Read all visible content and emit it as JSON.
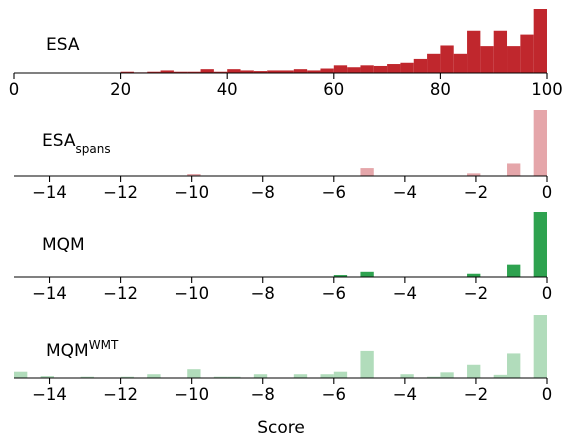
{
  "figure": {
    "xlabel": "Score"
  },
  "chart_data": [
    {
      "type": "bar",
      "label_main": "ESA",
      "label_sub": "",
      "label_sup": "",
      "color": "#c0272d",
      "xlim": [
        0,
        100
      ],
      "ylim": [
        0,
        1
      ],
      "xticks": [
        0,
        20,
        40,
        60,
        80,
        100
      ],
      "xtick_labels": [
        "0",
        "20",
        "40",
        "60",
        "80",
        "100"
      ],
      "bin_width": 2.5,
      "bars": [
        {
          "x": 20.0,
          "value": 0.02
        },
        {
          "x": 22.5,
          "value": 0.01
        },
        {
          "x": 25.0,
          "value": 0.02
        },
        {
          "x": 27.5,
          "value": 0.04
        },
        {
          "x": 30.0,
          "value": 0.02
        },
        {
          "x": 32.5,
          "value": 0.02
        },
        {
          "x": 35.0,
          "value": 0.06
        },
        {
          "x": 37.5,
          "value": 0.02
        },
        {
          "x": 40.0,
          "value": 0.06
        },
        {
          "x": 42.5,
          "value": 0.04
        },
        {
          "x": 45.0,
          "value": 0.03
        },
        {
          "x": 47.5,
          "value": 0.04
        },
        {
          "x": 50.0,
          "value": 0.04
        },
        {
          "x": 52.5,
          "value": 0.06
        },
        {
          "x": 55.0,
          "value": 0.04
        },
        {
          "x": 57.5,
          "value": 0.07
        },
        {
          "x": 60.0,
          "value": 0.12
        },
        {
          "x": 62.5,
          "value": 0.09
        },
        {
          "x": 65.0,
          "value": 0.12
        },
        {
          "x": 67.5,
          "value": 0.11
        },
        {
          "x": 70.0,
          "value": 0.14
        },
        {
          "x": 72.5,
          "value": 0.16
        },
        {
          "x": 75.0,
          "value": 0.22
        },
        {
          "x": 77.5,
          "value": 0.3
        },
        {
          "x": 80.0,
          "value": 0.43
        },
        {
          "x": 82.5,
          "value": 0.3
        },
        {
          "x": 85.0,
          "value": 0.66
        },
        {
          "x": 87.5,
          "value": 0.42
        },
        {
          "x": 90.0,
          "value": 0.66
        },
        {
          "x": 92.5,
          "value": 0.42
        },
        {
          "x": 95.0,
          "value": 0.6
        },
        {
          "x": 97.5,
          "value": 1.0
        }
      ]
    },
    {
      "type": "bar",
      "label_main": "ESA",
      "label_sub": "spans",
      "label_sup": "",
      "color": "#e5a6aa",
      "xlim": [
        -15,
        0
      ],
      "ylim": [
        0,
        1
      ],
      "xticks": [
        -14,
        -12,
        -10,
        -8,
        -6,
        -4,
        -2,
        0
      ],
      "xtick_labels": [
        "−14",
        "−12",
        "−10",
        "−8",
        "−6",
        "−4",
        "−2",
        "0"
      ],
      "bin_width": 0.375,
      "bars": [
        {
          "x": -10.125,
          "value": 0.03
        },
        {
          "x": -5.25,
          "value": 0.12
        },
        {
          "x": -2.25,
          "value": 0.04
        },
        {
          "x": -1.125,
          "value": 0.19
        },
        {
          "x": -0.375,
          "value": 1.0
        }
      ]
    },
    {
      "type": "bar",
      "label_main": "MQM",
      "label_sub": "",
      "label_sup": "",
      "color": "#2ea24f",
      "xlim": [
        -15,
        0
      ],
      "ylim": [
        0,
        1
      ],
      "xticks": [
        -14,
        -12,
        -10,
        -8,
        -6,
        -4,
        -2,
        0
      ],
      "xtick_labels": [
        "−14",
        "−12",
        "−10",
        "−8",
        "−6",
        "−4",
        "−2",
        "0"
      ],
      "bin_width": 0.375,
      "bars": [
        {
          "x": -6.0,
          "value": 0.03
        },
        {
          "x": -5.25,
          "value": 0.08
        },
        {
          "x": -2.25,
          "value": 0.05
        },
        {
          "x": -1.125,
          "value": 0.19
        },
        {
          "x": -0.375,
          "value": 1.0
        }
      ]
    },
    {
      "type": "bar",
      "label_main": "MQM",
      "label_sub": "",
      "label_sup": "WMT",
      "color": "#b1dcbb",
      "xlim": [
        -15,
        0
      ],
      "ylim": [
        0,
        1
      ],
      "xticks": [
        -14,
        -12,
        -10,
        -8,
        -6,
        -4,
        -2,
        0
      ],
      "xtick_labels": [
        "−14",
        "−12",
        "−10",
        "−8",
        "−6",
        "−4",
        "−2",
        "0"
      ],
      "bin_width": 0.375,
      "bars": [
        {
          "x": -15.0,
          "value": 0.1
        },
        {
          "x": -14.25,
          "value": 0.03
        },
        {
          "x": -13.125,
          "value": 0.02
        },
        {
          "x": -12.0,
          "value": 0.02
        },
        {
          "x": -11.25,
          "value": 0.02
        },
        {
          "x": -11.25,
          "value": 0.06
        },
        {
          "x": -10.125,
          "value": 0.14
        },
        {
          "x": -9.375,
          "value": 0.02
        },
        {
          "x": -9.0,
          "value": 0.02
        },
        {
          "x": -8.25,
          "value": 0.06
        },
        {
          "x": -7.125,
          "value": 0.06
        },
        {
          "x": -6.375,
          "value": 0.06
        },
        {
          "x": -6.0,
          "value": 0.1
        },
        {
          "x": -5.25,
          "value": 0.43
        },
        {
          "x": -4.125,
          "value": 0.06
        },
        {
          "x": -3.375,
          "value": 0.02
        },
        {
          "x": -3.0,
          "value": 0.09
        },
        {
          "x": -2.25,
          "value": 0.21
        },
        {
          "x": -1.5,
          "value": 0.05
        },
        {
          "x": -1.125,
          "value": 0.39
        },
        {
          "x": -0.375,
          "value": 1.0
        }
      ]
    }
  ]
}
